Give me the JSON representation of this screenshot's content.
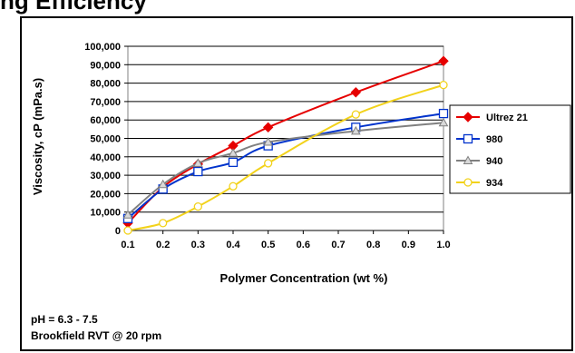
{
  "header": {
    "title": "ng Efficiency"
  },
  "notes": {
    "ph": "pH = 6.3 - 7.5",
    "method": "Brookfield RVT @ 20 rpm"
  },
  "colors": {
    "ultrez21": "#e60000",
    "s980": "#0033cc",
    "s940": "#808080",
    "s934": "#f2d21b"
  },
  "chart_data": {
    "type": "line",
    "title": "",
    "xlabel": "Polymer Concentration (wt %)",
    "ylabel": "Viscosity, cP (mPa.s)",
    "xlim": [
      0.1,
      1.0
    ],
    "ylim": [
      0,
      100000
    ],
    "grid": "horizontal",
    "legend_position": "right",
    "x_ticks": [
      "0.1",
      "0.2",
      "0.3",
      "0.4",
      "0.5",
      "0.6",
      "0.7",
      "0.8",
      "0.9",
      "1.0"
    ],
    "y_ticks": [
      "0",
      "10,000",
      "20,000",
      "30,000",
      "40,000",
      "50,000",
      "60,000",
      "70,000",
      "80,000",
      "90,000",
      "100,000"
    ],
    "series": [
      {
        "name": "Ultrez 21",
        "marker": "diamond",
        "color": "#e60000",
        "x": [
          0.1,
          0.2,
          0.3,
          0.4,
          0.5,
          0.75,
          1.0
        ],
        "y": [
          4000,
          23500,
          36000,
          46000,
          56000,
          75000,
          92000
        ]
      },
      {
        "name": "980",
        "marker": "square",
        "color": "#0033cc",
        "x": [
          0.1,
          0.2,
          0.3,
          0.4,
          0.5,
          0.75,
          1.0
        ],
        "y": [
          6500,
          22500,
          32000,
          37000,
          46000,
          56000,
          63500
        ]
      },
      {
        "name": "940",
        "marker": "triangle",
        "color": "#808080",
        "x": [
          0.1,
          0.2,
          0.3,
          0.4,
          0.5,
          0.75,
          1.0
        ],
        "y": [
          8500,
          25000,
          36500,
          42000,
          48000,
          54000,
          58500
        ]
      },
      {
        "name": "934",
        "marker": "circle",
        "color": "#f2d21b",
        "x": [
          0.1,
          0.2,
          0.3,
          0.4,
          0.5,
          0.75,
          1.0
        ],
        "y": [
          0,
          4000,
          13000,
          24000,
          36500,
          63000,
          79000
        ]
      }
    ]
  }
}
